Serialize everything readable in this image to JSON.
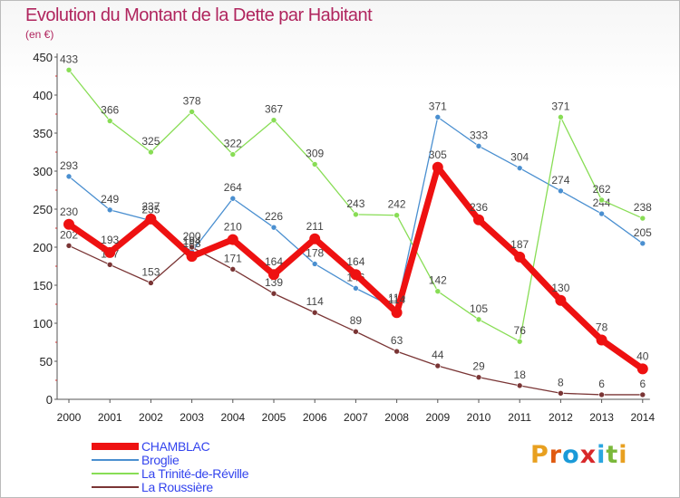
{
  "header": {
    "title": "Evolution du Montant de la Dette par Habitant",
    "subtitle": "(en €)"
  },
  "brand": {
    "letters": [
      "P",
      "r",
      "o",
      "x",
      "i",
      "t",
      "i"
    ],
    "colors": [
      "#e8a020",
      "#e05a10",
      "#1a9ad8",
      "#d8282a",
      "#2aa6e0",
      "#7ab83a",
      "#e8a020"
    ]
  },
  "chart_data": {
    "type": "line",
    "categories": [
      "2000",
      "2001",
      "2002",
      "2003",
      "2004",
      "2005",
      "2006",
      "2007",
      "2008",
      "2009",
      "2010",
      "2011",
      "2012",
      "2013",
      "2014"
    ],
    "ylim": [
      0,
      450
    ],
    "yticks": [
      0,
      50,
      100,
      150,
      200,
      250,
      300,
      350,
      400,
      450
    ],
    "grid": false,
    "legend_position": "bottom-left",
    "series": [
      {
        "name": "CHAMBLAC",
        "color": "#ee1111",
        "width": 7,
        "marker": 6,
        "values": [
          230,
          193,
          237,
          188,
          210,
          164,
          211,
          164,
          114,
          305,
          236,
          187,
          130,
          78,
          40
        ],
        "labels": [
          "230",
          "193",
          "237",
          "188",
          "210",
          "164",
          "211",
          "164",
          "114",
          "305",
          "236",
          "187",
          "130",
          "78",
          "40"
        ]
      },
      {
        "name": "Broglie",
        "color": "#4a8fd0",
        "width": 1.3,
        "marker": 3,
        "values": [
          293,
          249,
          235,
          194,
          264,
          226,
          178,
          146,
          119,
          371,
          333,
          304,
          274,
          244,
          205
        ],
        "labels": [
          "293",
          "249",
          "235",
          "194",
          "264",
          "226",
          "178",
          "146",
          "119",
          "371",
          "333",
          "304",
          "274",
          "244",
          "205"
        ]
      },
      {
        "name": "La Trinité-de-Réville",
        "color": "#88dd55",
        "width": 1.3,
        "marker": 3,
        "values": [
          433,
          366,
          325,
          378,
          322,
          367,
          309,
          243,
          242,
          142,
          105,
          76,
          371,
          262,
          238
        ],
        "labels": [
          "433",
          "366",
          "325",
          "378",
          "322",
          "367",
          "309",
          "243",
          "242",
          "142",
          "105",
          "76",
          "371",
          "262",
          "238"
        ]
      },
      {
        "name": "La Roussière",
        "color": "#7a3535",
        "width": 1.3,
        "marker": 3,
        "values": [
          202,
          177,
          153,
          200,
          171,
          139,
          114,
          89,
          63,
          44,
          29,
          18,
          8,
          6,
          6
        ],
        "labels": [
          "202",
          "177",
          "153",
          "200",
          "171",
          "139",
          "114",
          "89",
          "63",
          "44",
          "29",
          "18",
          "8",
          "6",
          "6"
        ]
      }
    ]
  }
}
